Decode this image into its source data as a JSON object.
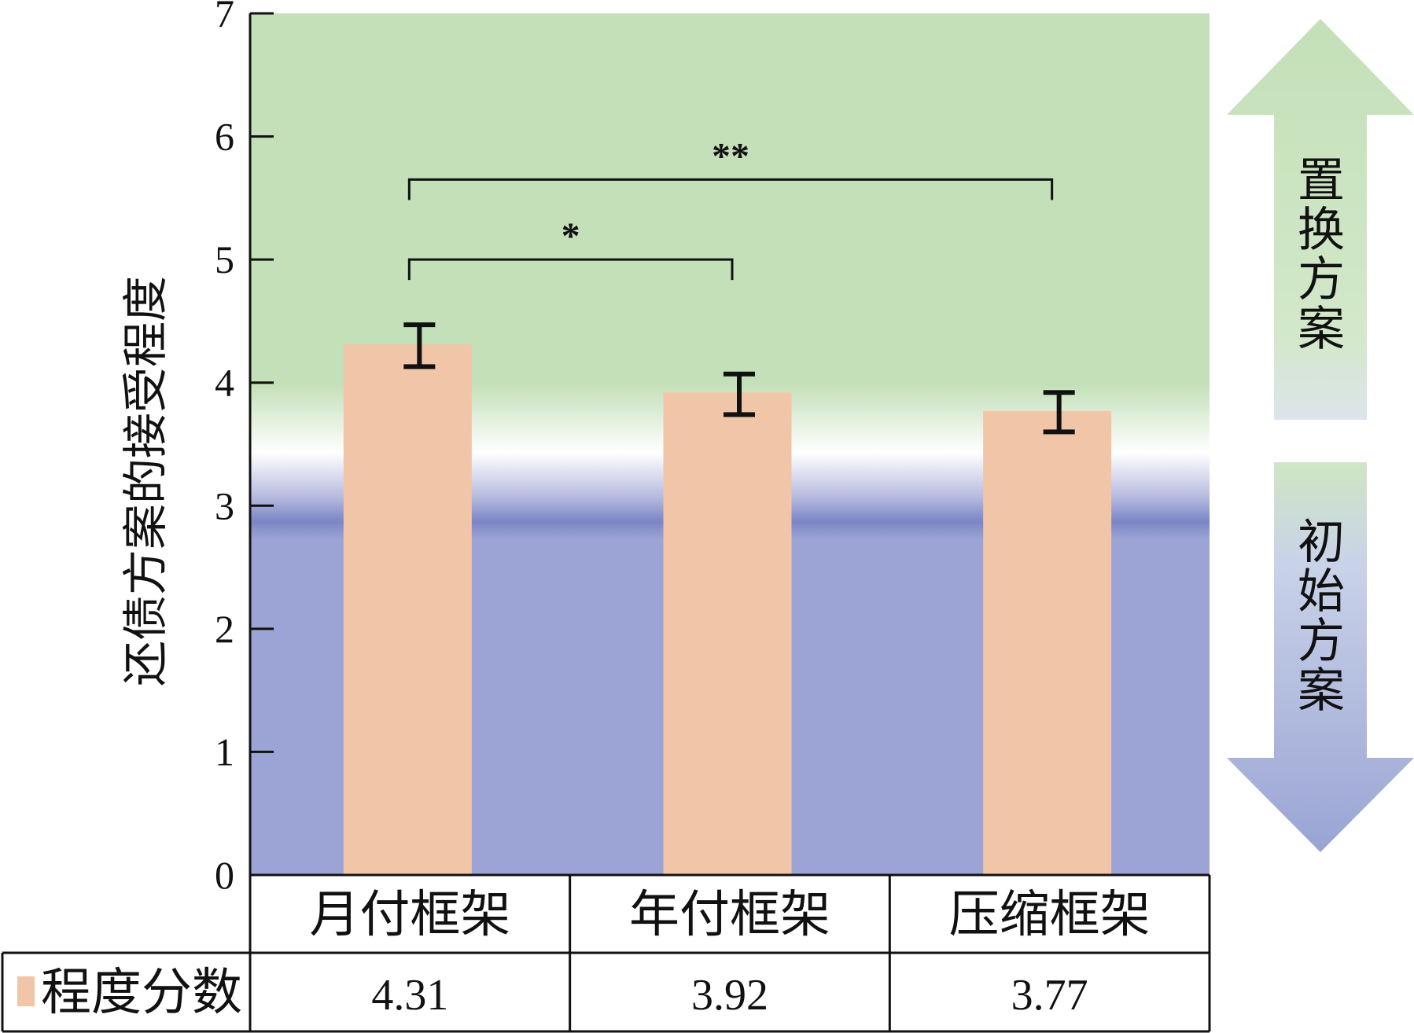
{
  "chart_data": {
    "type": "bar",
    "ylabel": "还债方案的接受程度",
    "ylim": [
      0,
      7
    ],
    "yticks": [
      "0",
      "1",
      "2",
      "3",
      "4",
      "5",
      "6",
      "7"
    ],
    "categories": [
      "月付框架",
      "年付框架",
      "压缩框架"
    ],
    "series": [
      {
        "name": "程度分数",
        "values": [
          4.31,
          3.92,
          3.77
        ],
        "value_labels": [
          "4.31",
          "3.92",
          "3.77"
        ],
        "error_low": [
          4.13,
          3.74,
          3.6
        ],
        "error_high": [
          4.47,
          4.07,
          3.92
        ]
      }
    ],
    "significance": [
      {
        "from": 0,
        "to": 1,
        "label": "*",
        "y": 5.0
      },
      {
        "from": 0,
        "to": 2,
        "label": "**",
        "y": 5.65
      }
    ],
    "regions": {
      "upper_label": "置换方案",
      "lower_label": "初始方案",
      "upper_color": "#c3e0b8",
      "lower_color": "#9ca4d5"
    },
    "colors": {
      "bar": "#f1c5a8",
      "axis": "#111111"
    },
    "table": {
      "row_label": "程度分数"
    }
  }
}
